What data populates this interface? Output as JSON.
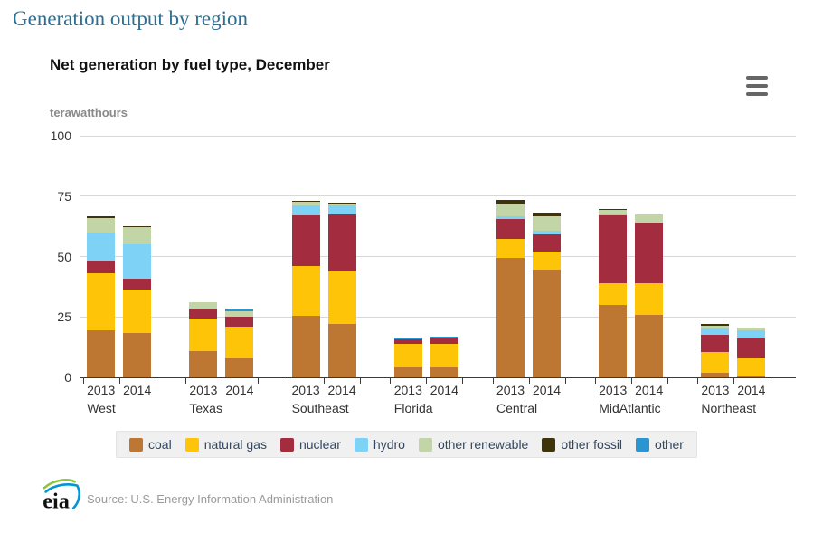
{
  "page": {
    "title": "Generation output by region"
  },
  "chart": {
    "title": "Net generation by fuel type, December",
    "unit_label": "terawatthours",
    "menu_icon": "hamburger-icon"
  },
  "footer": {
    "logo_text": "eia",
    "source_text": "Source: U.S. Energy Information Administration"
  },
  "chart_data": {
    "type": "bar",
    "stacked": true,
    "title": "Net generation by fuel type, December",
    "ylabel": "terawatthours",
    "ylim": [
      0,
      100
    ],
    "yticks": [
      0,
      25,
      50,
      75,
      100
    ],
    "grid": true,
    "legend_position": "bottom",
    "categories": [
      "West",
      "Texas",
      "Southeast",
      "Florida",
      "Central",
      "MidAtlantic",
      "Northeast"
    ],
    "years": [
      "2013",
      "2014"
    ],
    "series": [
      {
        "name": "coal",
        "color": "#bd7733",
        "values_2013": [
          19.5,
          11,
          25.5,
          4,
          49.5,
          30,
          1.75
        ],
        "values_2014": [
          18.5,
          8,
          22,
          4,
          44.5,
          26,
          0.5
        ]
      },
      {
        "name": "natural gas",
        "color": "#fdc408",
        "values_2013": [
          23.5,
          13.5,
          20.5,
          10,
          7.75,
          9,
          8.75
        ],
        "values_2014": [
          18,
          13,
          22,
          10,
          7.75,
          13,
          7.5
        ]
      },
      {
        "name": "nuclear",
        "color": "#a32c3e",
        "values_2013": [
          5.5,
          4,
          21,
          1.75,
          8.25,
          28,
          7.25
        ],
        "values_2014": [
          4.5,
          4,
          23.5,
          2,
          7,
          25,
          8
        ]
      },
      {
        "name": "hydro",
        "color": "#7dd2f6",
        "values_2013": [
          11.5,
          0,
          4,
          0,
          1,
          0.25,
          2.5
        ],
        "values_2014": [
          14,
          0,
          3.5,
          0,
          1.25,
          0,
          3.5
        ]
      },
      {
        "name": "other renewable",
        "color": "#c1d5a6",
        "values_2013": [
          6,
          2.5,
          1.5,
          0,
          5.5,
          2,
          1
        ],
        "values_2014": [
          7,
          2.5,
          0.75,
          0,
          6,
          3.5,
          1
        ]
      },
      {
        "name": "other fossil",
        "color": "#3f3309",
        "values_2013": [
          0.5,
          0,
          0.5,
          0,
          1.5,
          0.5,
          0.75
        ],
        "values_2014": [
          0.5,
          0,
          0.25,
          0,
          1.75,
          0,
          0
        ]
      },
      {
        "name": "other",
        "color": "#2a95d0",
        "values_2013": [
          0,
          0,
          0,
          0.75,
          0,
          0,
          0
        ],
        "values_2014": [
          0,
          1,
          0,
          0.75,
          0,
          0,
          0
        ]
      }
    ]
  }
}
